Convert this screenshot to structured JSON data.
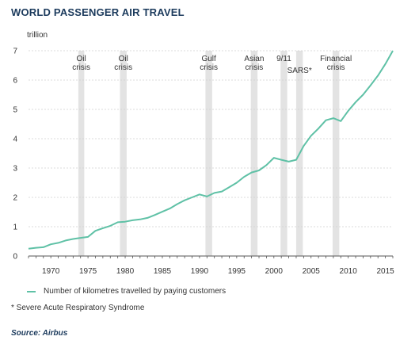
{
  "title": "WORLD PASSENGER AIR TRAVEL",
  "legend_label": "Number of kilometres travelled by paying customers",
  "footnote": "* Severe Acute Respiratory Syndrome",
  "source": "Source: Airbus",
  "colors": {
    "line": "#5fc1a6",
    "band": "#e3e3e3",
    "axis": "#555555",
    "grid": "#cfcfcf",
    "title": "#1b3a5c"
  },
  "chart_data": {
    "type": "line",
    "ylabel": "trillion",
    "ylim": [
      0,
      7
    ],
    "xlim": [
      1967,
      2016
    ],
    "yticks": [
      0,
      1,
      2,
      3,
      4,
      5,
      6,
      7
    ],
    "xticks": [
      1970,
      1975,
      1980,
      1985,
      1990,
      1995,
      2000,
      2005,
      2010,
      2015
    ],
    "grid": "horizontal dashed",
    "legend_position": "bottom",
    "series": [
      {
        "name": "Number of kilometres travelled by paying customers",
        "x": [
          1967,
          1968,
          1969,
          1970,
          1971,
          1972,
          1973,
          1974,
          1975,
          1976,
          1977,
          1978,
          1979,
          1980,
          1981,
          1982,
          1983,
          1984,
          1985,
          1986,
          1987,
          1988,
          1989,
          1990,
          1991,
          1992,
          1993,
          1994,
          1995,
          1996,
          1997,
          1998,
          1999,
          2000,
          2001,
          2002,
          2003,
          2004,
          2005,
          2006,
          2007,
          2008,
          2009,
          2010,
          2011,
          2012,
          2013,
          2014,
          2015,
          2016
        ],
        "values": [
          0.25,
          0.28,
          0.3,
          0.4,
          0.45,
          0.53,
          0.58,
          0.62,
          0.65,
          0.86,
          0.95,
          1.03,
          1.15,
          1.17,
          1.22,
          1.25,
          1.3,
          1.4,
          1.51,
          1.62,
          1.77,
          1.9,
          2.0,
          2.1,
          2.03,
          2.15,
          2.2,
          2.35,
          2.5,
          2.7,
          2.85,
          2.92,
          3.1,
          3.35,
          3.28,
          3.22,
          3.28,
          3.75,
          4.1,
          4.35,
          4.63,
          4.7,
          4.6,
          4.95,
          5.25,
          5.5,
          5.82,
          6.15,
          6.55,
          7.0
        ]
      }
    ],
    "annotations": [
      {
        "label": "Oil crisis",
        "lines": [
          "Oil",
          "crisis"
        ],
        "from": 1973.7,
        "to": 1974.5
      },
      {
        "label": "Oil crisis",
        "lines": [
          "Oil",
          "crisis"
        ],
        "from": 1979.3,
        "to": 1980.2
      },
      {
        "label": "Gulf crisis",
        "lines": [
          "Gulf",
          "crisis"
        ],
        "from": 1990.8,
        "to": 1991.7
      },
      {
        "label": "Asian crisis",
        "lines": [
          "Asian",
          "crisis"
        ],
        "from": 1996.9,
        "to": 1997.8
      },
      {
        "label": "9/11",
        "lines": [
          "9/11"
        ],
        "from": 2000.9,
        "to": 2001.8
      },
      {
        "label": "SARS*",
        "lines": [
          "SARS*"
        ],
        "from": 2003.0,
        "to": 2003.9
      },
      {
        "label": "Financial crisis",
        "lines": [
          "Financial",
          "crisis"
        ],
        "from": 2007.9,
        "to": 2008.8
      }
    ]
  }
}
